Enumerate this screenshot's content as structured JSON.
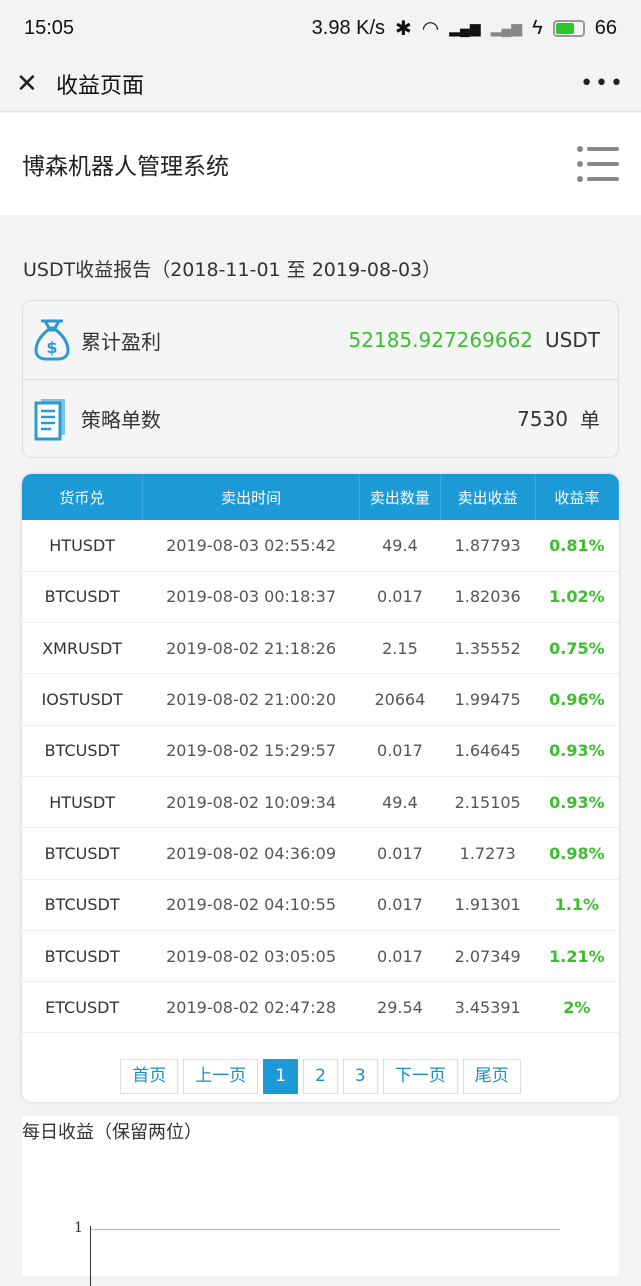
{
  "status": {
    "time": "15:05",
    "speed": "3.98 K/s",
    "battery": "66",
    "icons": [
      "bluetooth-icon",
      "wifi-icon",
      "signal-4g-icon",
      "signal-4g-icon",
      "charging-icon",
      "battery-icon"
    ]
  },
  "nav": {
    "title": "收益页面",
    "close_icon": "close-icon",
    "more_icon": "more-icon"
  },
  "header": {
    "title": "博森机器人管理系统",
    "menu_icon": "list-menu-icon"
  },
  "report": {
    "title": "USDT收益报告（2018-11-01 至 2019-08-03）"
  },
  "summary": {
    "profit_label": "累计盈利",
    "profit_value": "52185.927269662",
    "profit_unit": "USDT",
    "orders_label": "策略单数",
    "orders_value": "7530",
    "orders_unit": "单",
    "profit_color": "#3bbf2e"
  },
  "table": {
    "headers": [
      "货币兑",
      "卖出时间",
      "卖出数量",
      "卖出收益",
      "收益率"
    ],
    "rows": [
      [
        "HTUSDT",
        "2019-08-03 02:55:42",
        "49.4",
        "1.87793",
        "0.81%"
      ],
      [
        "BTCUSDT",
        "2019-08-03 00:18:37",
        "0.017",
        "1.82036",
        "1.02%"
      ],
      [
        "XMRUSDT",
        "2019-08-02 21:18:26",
        "2.15",
        "1.35552",
        "0.75%"
      ],
      [
        "IOSTUSDT",
        "2019-08-02 21:00:20",
        "20664",
        "1.99475",
        "0.96%"
      ],
      [
        "BTCUSDT",
        "2019-08-02 15:29:57",
        "0.017",
        "1.64645",
        "0.93%"
      ],
      [
        "HTUSDT",
        "2019-08-02 10:09:34",
        "49.4",
        "2.15105",
        "0.93%"
      ],
      [
        "BTCUSDT",
        "2019-08-02 04:36:09",
        "0.017",
        "1.7273",
        "0.98%"
      ],
      [
        "BTCUSDT",
        "2019-08-02 04:10:55",
        "0.017",
        "1.91301",
        "1.1%"
      ],
      [
        "BTCUSDT",
        "2019-08-02 03:05:05",
        "0.017",
        "2.07349",
        "1.21%"
      ],
      [
        "ETCUSDT",
        "2019-08-02 02:47:28",
        "29.54",
        "3.45391",
        "2%"
      ]
    ]
  },
  "pager": {
    "first": "首页",
    "prev": "上一页",
    "pages": [
      "1",
      "2",
      "3"
    ],
    "current": "1",
    "next": "下一页",
    "last": "尾页"
  },
  "daily": {
    "title": "每日收益（保留两位）",
    "y_tick": "1"
  },
  "accent": "#1b9ad6"
}
